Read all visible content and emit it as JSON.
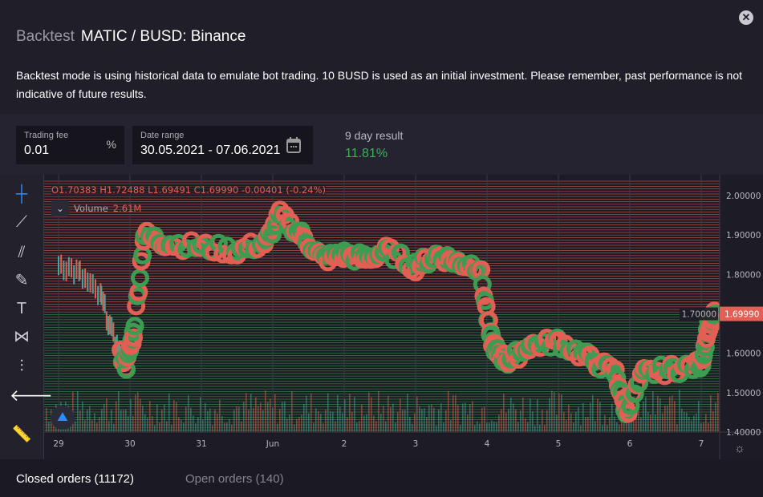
{
  "header": {
    "mode": "Backtest",
    "pair": "MATIC / BUSD: Binance",
    "description": "Backtest mode is using historical data to emulate bot trading. 10 BUSD is used as an initial investment. Please remember, past performance is not indicative of future results."
  },
  "trading_fee": {
    "label": "Trading fee",
    "value": "0.01",
    "unit": "%"
  },
  "date_range": {
    "label": "Date range",
    "value": "30.05.2021 - 07.06.2021"
  },
  "result": {
    "label": "9 day result",
    "value": "11.81%"
  },
  "legend": {
    "ohlc": "O1.70383 H1.72488 L1.69491 C1.69990 -0.00401 (-0.24%)",
    "volume_label": "Volume",
    "volume_value": "2.61M"
  },
  "colors": {
    "up": "#3e9b52",
    "down": "#e35f54",
    "accent": "#2f8cff"
  },
  "tabs": {
    "closed": "Closed orders (11172)",
    "open": "Open orders (140)"
  },
  "chart_data": {
    "type": "line",
    "x_ticks": [
      "29",
      "30",
      "31",
      "Jun",
      "2",
      "3",
      "4",
      "5",
      "6",
      "7"
    ],
    "y_ticks": [
      "2.00000",
      "1.90000",
      "1.80000",
      "1.70000",
      "1.60000",
      "1.50000",
      "1.40000"
    ],
    "ylim": [
      1.38,
      2.05
    ],
    "last_price": "1.69990",
    "series": [
      {
        "name": "MATIC/BUSD",
        "x": [
          0,
          0.3,
          0.6,
          0.8,
          0.95,
          1.05,
          1.2,
          1.5,
          2.0,
          2.5,
          2.9,
          3.1,
          3.4,
          3.7,
          4.0,
          4.3,
          4.6,
          5.0,
          5.3,
          5.6,
          5.9,
          6.05,
          6.15,
          6.3,
          6.6,
          7.0,
          7.4,
          7.8,
          7.95,
          8.2,
          8.6,
          9.0,
          9.1,
          9.2
        ],
        "y": [
          1.83,
          1.8,
          1.74,
          1.62,
          1.57,
          1.65,
          1.9,
          1.88,
          1.87,
          1.86,
          1.88,
          1.95,
          1.9,
          1.84,
          1.85,
          1.84,
          1.86,
          1.82,
          1.85,
          1.83,
          1.82,
          1.64,
          1.6,
          1.58,
          1.62,
          1.63,
          1.59,
          1.55,
          1.45,
          1.55,
          1.56,
          1.57,
          1.67,
          1.7
        ]
      }
    ]
  }
}
